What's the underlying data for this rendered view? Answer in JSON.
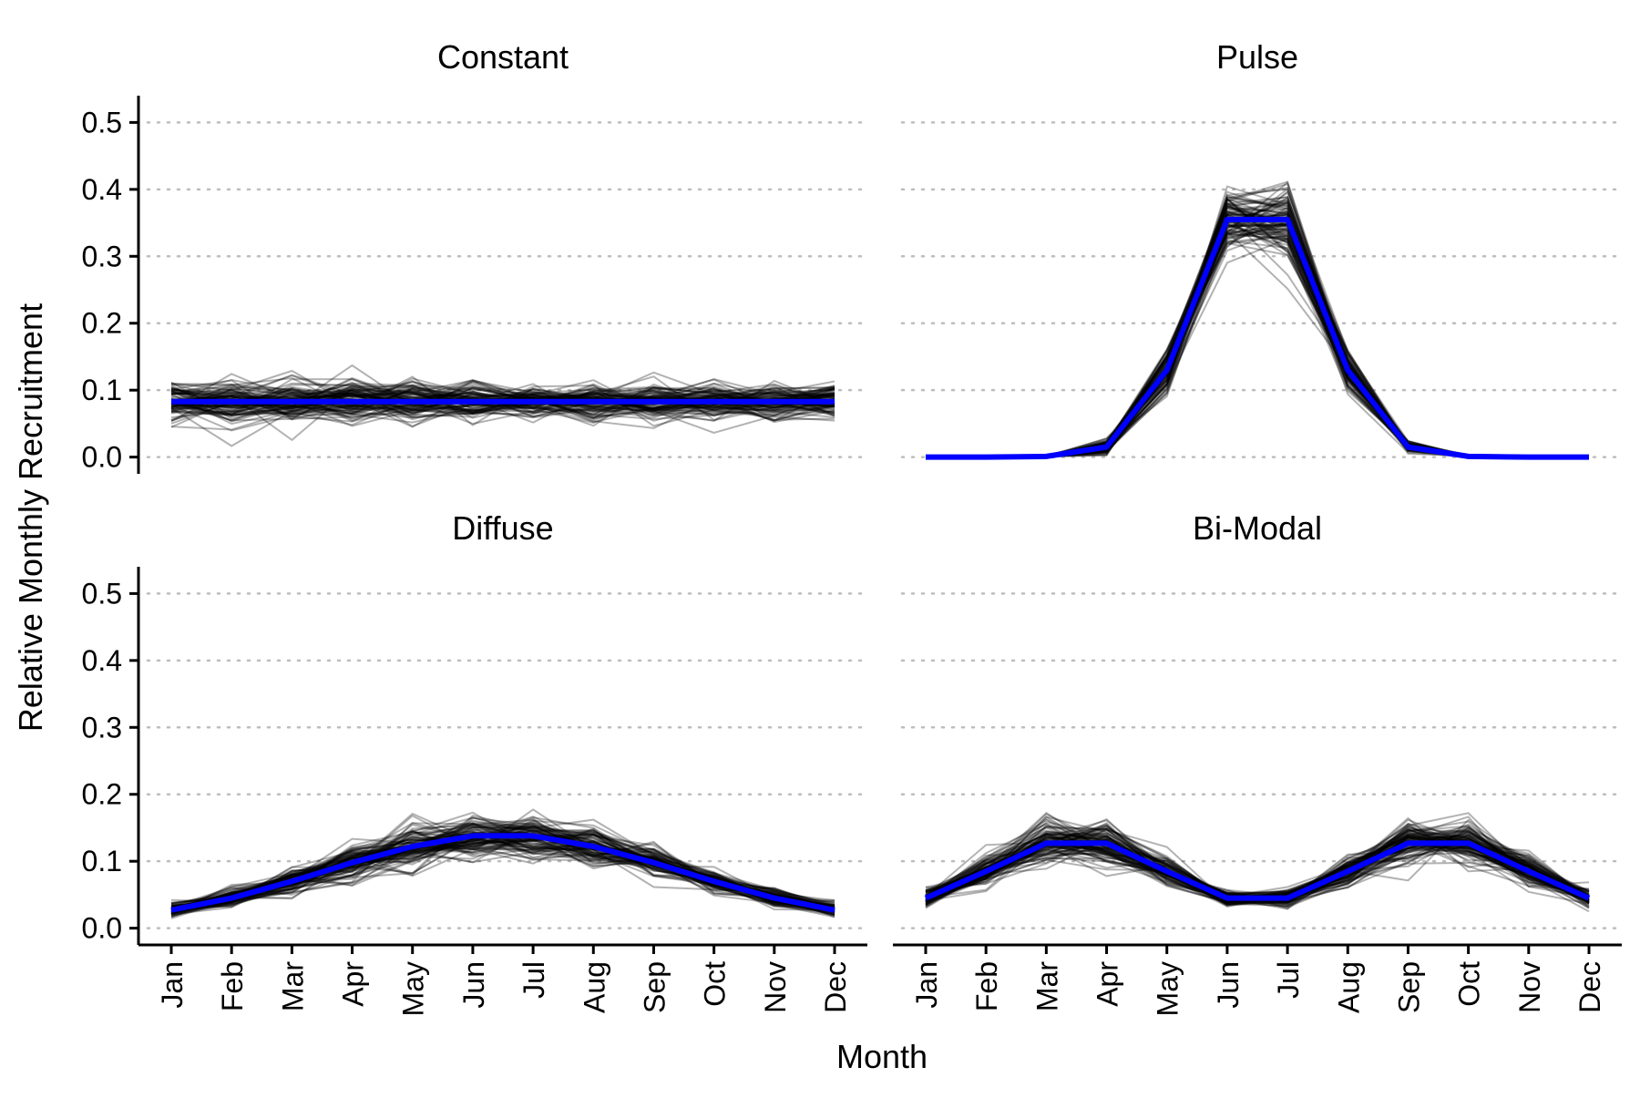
{
  "chart_data": {
    "type": "line",
    "layout": "faceted 2x2",
    "xlabel": "Month",
    "ylabel": "Relative Monthly Recruitment",
    "ylim": [
      0,
      0.5
    ],
    "yticks": [
      "0.0",
      "0.1",
      "0.2",
      "0.3",
      "0.4",
      "0.5"
    ],
    "grid": "horizontal dotted",
    "colors": {
      "mean": "#0000ff",
      "simulations": "#000000"
    },
    "categories": [
      "Jan",
      "Feb",
      "Mar",
      "Apr",
      "May",
      "Jun",
      "Jul",
      "Aug",
      "Sep",
      "Oct",
      "Nov",
      "Dec"
    ],
    "panels": [
      {
        "title": "Constant",
        "mean": [
          0.083,
          0.083,
          0.083,
          0.083,
          0.083,
          0.083,
          0.083,
          0.083,
          0.083,
          0.083,
          0.083,
          0.083
        ],
        "spread": [
          0.03,
          0.03,
          0.03,
          0.03,
          0.03,
          0.025,
          0.02,
          0.025,
          0.025,
          0.025,
          0.025,
          0.025
        ]
      },
      {
        "title": "Pulse",
        "mean": [
          0.0,
          0.0,
          0.001,
          0.015,
          0.13,
          0.355,
          0.355,
          0.13,
          0.015,
          0.001,
          0.0,
          0.0
        ],
        "spread": [
          0.0,
          0.0,
          0.002,
          0.01,
          0.03,
          0.04,
          0.05,
          0.03,
          0.007,
          0.002,
          0.0,
          0.0
        ]
      },
      {
        "title": "Diffuse",
        "mean": [
          0.027,
          0.045,
          0.07,
          0.098,
          0.122,
          0.138,
          0.138,
          0.122,
          0.098,
          0.07,
          0.045,
          0.027
        ],
        "spread": [
          0.01,
          0.015,
          0.018,
          0.025,
          0.03,
          0.03,
          0.025,
          0.025,
          0.02,
          0.015,
          0.012,
          0.01
        ]
      },
      {
        "title": "Bi-Modal",
        "mean": [
          0.045,
          0.085,
          0.127,
          0.127,
          0.085,
          0.045,
          0.045,
          0.085,
          0.127,
          0.127,
          0.085,
          0.045
        ],
        "spread": [
          0.012,
          0.02,
          0.03,
          0.03,
          0.02,
          0.012,
          0.012,
          0.02,
          0.03,
          0.03,
          0.02,
          0.012
        ]
      }
    ]
  }
}
